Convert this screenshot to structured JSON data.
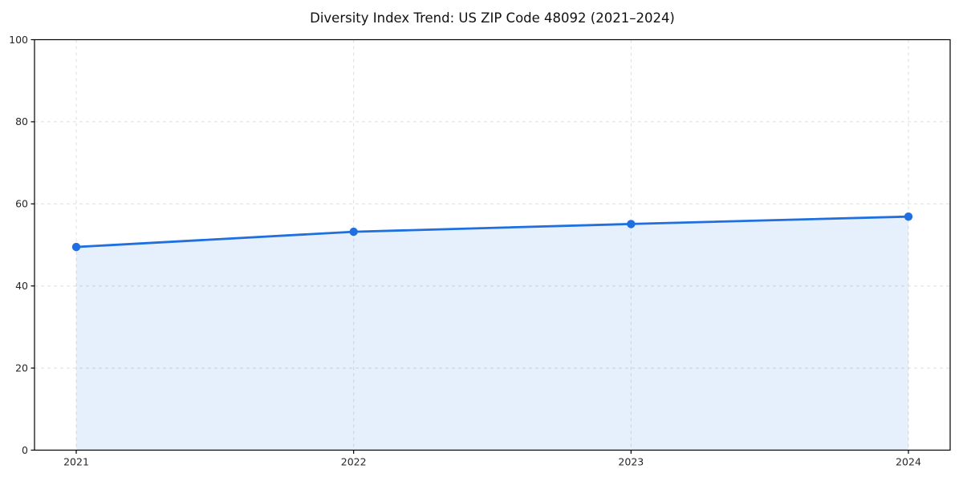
{
  "chart_data": {
    "type": "area",
    "title": "Diversity Index Trend: US ZIP Code 48092 (2021–2024)",
    "xlabel": "",
    "ylabel": "",
    "categories": [
      "2021",
      "2022",
      "2023",
      "2024"
    ],
    "series": [
      {
        "name": "Diversity Index",
        "values": [
          49.5,
          53.2,
          55.1,
          56.9
        ]
      }
    ],
    "ylim": [
      0,
      100
    ],
    "yticks": [
      0,
      20,
      40,
      60,
      80,
      100
    ],
    "grid": true,
    "grid_style": "dashed",
    "legend": false,
    "marker": "circle",
    "colors": {
      "line": "#1f6fe0",
      "marker": "#1f6fe0",
      "fill": "#1f6fe0",
      "fill_opacity": 0.11,
      "grid": "#dedede",
      "axis": "#000000",
      "tick_label": "#262626",
      "background": "#ffffff"
    }
  }
}
